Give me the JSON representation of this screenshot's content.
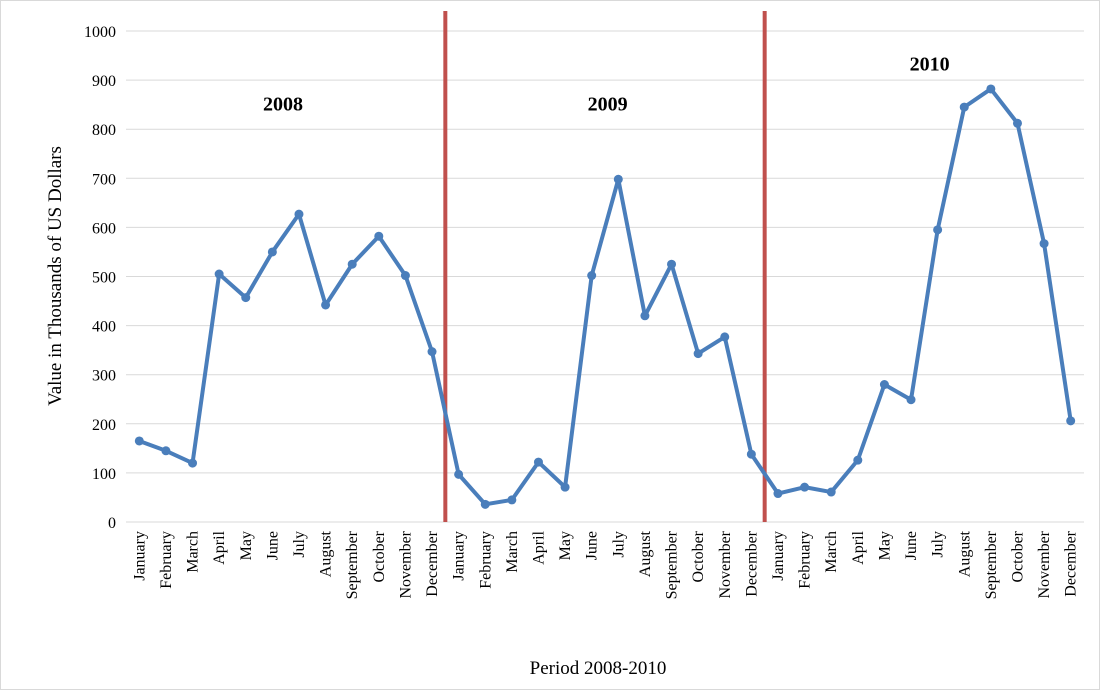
{
  "chart_data": {
    "type": "line",
    "title": "",
    "xlabel": "Period 2008-2010",
    "ylabel": "Value in  Thousands  of US Dollars",
    "ylim": [
      0,
      1000
    ],
    "yticks": [
      0,
      100,
      200,
      300,
      400,
      500,
      600,
      700,
      800,
      900,
      1000
    ],
    "grid": "horizontal",
    "colors": {
      "series": "#4a7ebb",
      "divider": "#c0504d",
      "grid": "#d9d9d9"
    },
    "categories": [
      "January",
      "February",
      "March",
      "April",
      "May",
      "June",
      "July",
      "August",
      "September",
      "October",
      "November",
      "December",
      "January",
      "February",
      "March",
      "April",
      "May",
      "June",
      "July",
      "August",
      "September",
      "October",
      "November",
      "December",
      "January",
      "February",
      "March",
      "April",
      "May",
      "June",
      "July",
      "August",
      "September",
      "October",
      "November",
      "December"
    ],
    "series": [
      {
        "values": [
          165,
          145,
          120,
          505,
          457,
          550,
          627,
          442,
          525,
          582,
          502,
          347,
          97,
          36,
          45,
          122,
          71,
          502,
          698,
          420,
          525,
          343,
          377,
          138,
          58,
          71,
          61,
          126,
          280,
          249,
          595,
          845,
          882,
          812,
          567,
          206
        ]
      }
    ],
    "annotations": [
      {
        "text": "2008",
        "x_index": 5.4,
        "y": 838
      },
      {
        "text": "2009",
        "x_index": 17.6,
        "y": 838
      },
      {
        "text": "2010",
        "x_index": 29.7,
        "y": 920
      }
    ],
    "dividers": [
      11.5,
      23.5
    ]
  }
}
